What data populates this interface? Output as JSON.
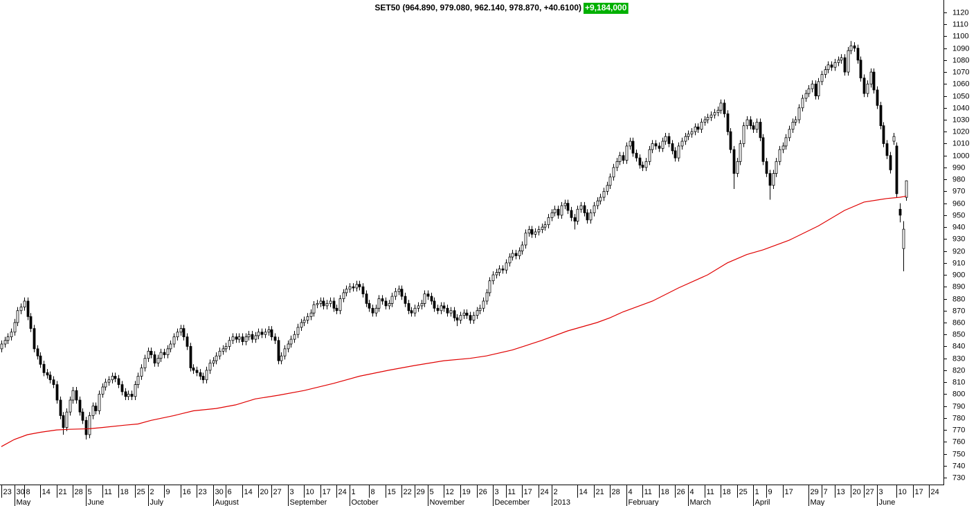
{
  "chart_data": {
    "type": "candlestick",
    "title": "SET50 (964.890, 979.080, 962.140, 978.870, +40.6100)",
    "volume_label": "+9,184,000",
    "up_color": "#ffffff",
    "down_color": "#000000",
    "open": [
      838,
      842,
      845,
      848,
      852,
      860,
      870,
      873,
      878,
      865,
      855,
      838,
      832,
      825,
      818,
      816,
      812,
      808,
      795,
      782,
      772,
      785,
      795,
      803,
      795,
      785,
      778,
      766,
      782,
      790,
      786,
      800,
      806,
      810,
      812,
      815,
      813,
      808,
      802,
      798,
      800,
      798,
      808,
      815,
      822,
      830,
      836,
      833,
      826,
      830,
      835,
      833,
      838,
      842,
      848,
      852,
      855,
      848,
      840,
      822,
      820,
      818,
      815,
      812,
      820,
      826,
      828,
      832,
      836,
      838,
      840,
      845,
      848,
      846,
      848,
      844,
      848,
      850,
      846,
      849,
      852,
      850,
      852,
      854,
      848,
      845,
      828,
      832,
      838,
      842,
      846,
      850,
      856,
      860,
      862,
      865,
      868,
      875,
      876,
      878,
      874,
      876,
      878,
      872,
      870,
      880,
      885,
      888,
      890,
      889,
      892,
      890,
      884,
      876,
      872,
      868,
      872,
      880,
      878,
      874,
      876,
      882,
      886,
      888,
      882,
      876,
      870,
      868,
      872,
      874,
      876,
      884,
      882,
      878,
      872,
      870,
      874,
      872,
      868,
      870,
      864,
      862,
      866,
      868,
      866,
      862,
      866,
      870,
      872,
      878,
      885,
      895,
      900,
      902,
      905,
      904,
      910,
      915,
      918,
      916,
      920,
      925,
      935,
      938,
      934,
      936,
      938,
      940,
      942,
      948,
      952,
      955,
      950,
      958,
      960,
      954,
      948,
      945,
      955,
      958,
      952,
      946,
      952,
      958,
      962,
      965,
      970,
      975,
      982,
      990,
      995,
      1000,
      996,
      1008,
      1012,
      1002,
      998,
      992,
      990,
      995,
      1005,
      1010,
      1008,
      1006,
      1012,
      1016,
      1010,
      1004,
      998,
      1008,
      1012,
      1016,
      1018,
      1020,
      1024,
      1022,
      1028,
      1030,
      1032,
      1034,
      1036,
      1038,
      1044,
      1035,
      1020,
      1005,
      985,
      995,
      1010,
      1025,
      1030,
      1025,
      1022,
      1028,
      1015,
      995,
      985,
      975,
      985,
      995,
      1005,
      1008,
      1015,
      1022,
      1028,
      1030,
      1040,
      1048,
      1052,
      1056,
      1060,
      1050,
      1062,
      1068,
      1072,
      1076,
      1074,
      1078,
      1080,
      1082,
      1070,
      1088,
      1092,
      1090,
      1080,
      1065,
      1052,
      1060,
      1070,
      1055,
      1042,
      1025,
      1010,
      1000,
      1012,
      1008,
      955,
      922,
      964.89
    ],
    "high": [
      845,
      848,
      851,
      855,
      863,
      873,
      876,
      881,
      881,
      868,
      858,
      841,
      835,
      828,
      821,
      819,
      815,
      811,
      798,
      785,
      788,
      798,
      806,
      806,
      798,
      788,
      781,
      785,
      793,
      793,
      803,
      809,
      813,
      815,
      818,
      818,
      816,
      811,
      805,
      803,
      803,
      811,
      818,
      825,
      833,
      839,
      839,
      836,
      833,
      838,
      838,
      841,
      845,
      851,
      855,
      858,
      858,
      851,
      843,
      825,
      823,
      821,
      818,
      823,
      829,
      831,
      835,
      839,
      841,
      843,
      848,
      851,
      851,
      851,
      851,
      851,
      853,
      853,
      852,
      855,
      855,
      855,
      857,
      857,
      851,
      848,
      835,
      841,
      845,
      849,
      853,
      859,
      863,
      865,
      868,
      871,
      878,
      879,
      881,
      881,
      879,
      881,
      881,
      875,
      883,
      888,
      891,
      893,
      893,
      895,
      895,
      893,
      887,
      879,
      875,
      875,
      883,
      883,
      881,
      879,
      885,
      889,
      891,
      891,
      885,
      879,
      873,
      875,
      877,
      879,
      887,
      887,
      885,
      881,
      875,
      877,
      877,
      875,
      873,
      873,
      867,
      869,
      871,
      871,
      869,
      869,
      873,
      875,
      881,
      888,
      898,
      903,
      905,
      908,
      908,
      913,
      918,
      921,
      921,
      923,
      928,
      938,
      941,
      941,
      939,
      941,
      943,
      945,
      951,
      955,
      958,
      958,
      961,
      963,
      963,
      957,
      951,
      958,
      961,
      961,
      955,
      955,
      961,
      965,
      968,
      973,
      978,
      985,
      993,
      998,
      1003,
      1003,
      1011,
      1015,
      1015,
      1005,
      1001,
      995,
      998,
      1008,
      1013,
      1013,
      1011,
      1015,
      1019,
      1019,
      1013,
      1007,
      1011,
      1015,
      1019,
      1021,
      1023,
      1027,
      1027,
      1031,
      1033,
      1035,
      1037,
      1039,
      1041,
      1047,
      1047,
      1038,
      1023,
      1008,
      998,
      1013,
      1028,
      1033,
      1033,
      1028,
      1031,
      1031,
      1018,
      998,
      988,
      988,
      998,
      1008,
      1011,
      1018,
      1025,
      1031,
      1033,
      1043,
      1051,
      1055,
      1059,
      1063,
      1063,
      1065,
      1071,
      1075,
      1079,
      1079,
      1081,
      1083,
      1085,
      1085,
      1091,
      1096,
      1095,
      1093,
      1083,
      1068,
      1063,
      1073,
      1073,
      1058,
      1045,
      1028,
      1013,
      1003,
      1019,
      1011,
      960,
      945,
      979.08
    ],
    "low": [
      835,
      839,
      842,
      845,
      849,
      857,
      867,
      870,
      862,
      852,
      835,
      829,
      822,
      815,
      813,
      809,
      805,
      792,
      779,
      766,
      769,
      782,
      792,
      792,
      782,
      775,
      762,
      763,
      779,
      783,
      783,
      797,
      803,
      807,
      809,
      810,
      805,
      799,
      795,
      795,
      795,
      795,
      805,
      812,
      819,
      827,
      830,
      823,
      823,
      827,
      830,
      830,
      835,
      839,
      845,
      849,
      845,
      837,
      819,
      817,
      815,
      812,
      809,
      809,
      817,
      823,
      825,
      829,
      833,
      835,
      837,
      842,
      843,
      843,
      841,
      841,
      845,
      843,
      843,
      846,
      847,
      847,
      849,
      845,
      842,
      825,
      825,
      829,
      835,
      839,
      843,
      847,
      853,
      857,
      859,
      862,
      865,
      872,
      873,
      871,
      871,
      873,
      869,
      867,
      867,
      877,
      882,
      885,
      886,
      886,
      887,
      881,
      873,
      869,
      865,
      865,
      869,
      875,
      871,
      871,
      873,
      879,
      883,
      879,
      873,
      867,
      865,
      865,
      869,
      871,
      873,
      879,
      875,
      869,
      867,
      867,
      869,
      865,
      865,
      861,
      857,
      859,
      863,
      863,
      859,
      859,
      863,
      867,
      869,
      875,
      882,
      892,
      897,
      899,
      901,
      901,
      907,
      912,
      913,
      913,
      917,
      922,
      932,
      931,
      931,
      933,
      935,
      937,
      939,
      945,
      949,
      947,
      947,
      955,
      951,
      945,
      938,
      942,
      952,
      949,
      943,
      943,
      949,
      955,
      959,
      962,
      967,
      972,
      979,
      987,
      992,
      993,
      993,
      1005,
      999,
      995,
      989,
      987,
      987,
      992,
      1002,
      1005,
      1003,
      1003,
      1009,
      1007,
      1001,
      995,
      995,
      1005,
      1009,
      1013,
      1015,
      1017,
      1019,
      1019,
      1025,
      1027,
      1029,
      1031,
      1033,
      1035,
      1032,
      1017,
      1002,
      972,
      982,
      992,
      1007,
      1022,
      1022,
      1019,
      1019,
      1012,
      992,
      982,
      963,
      972,
      982,
      992,
      1002,
      1005,
      1012,
      1019,
      1025,
      1027,
      1037,
      1045,
      1049,
      1053,
      1047,
      1047,
      1059,
      1065,
      1069,
      1071,
      1071,
      1075,
      1077,
      1067,
      1067,
      1085,
      1087,
      1077,
      1062,
      1049,
      1049,
      1057,
      1052,
      1039,
      1022,
      1007,
      997,
      985,
      1009,
      965,
      944,
      903,
      962.14
    ],
    "close": [
      842,
      845,
      848,
      852,
      860,
      870,
      873,
      878,
      865,
      855,
      838,
      832,
      825,
      818,
      816,
      812,
      808,
      795,
      782,
      772,
      785,
      795,
      803,
      795,
      785,
      778,
      766,
      782,
      790,
      786,
      800,
      806,
      810,
      812,
      815,
      813,
      808,
      802,
      798,
      800,
      798,
      808,
      815,
      822,
      830,
      836,
      833,
      826,
      830,
      835,
      833,
      838,
      842,
      848,
      852,
      855,
      848,
      840,
      822,
      820,
      818,
      815,
      812,
      820,
      826,
      828,
      832,
      836,
      838,
      840,
      845,
      848,
      846,
      848,
      844,
      848,
      850,
      846,
      849,
      852,
      850,
      852,
      854,
      848,
      845,
      828,
      832,
      838,
      842,
      846,
      850,
      856,
      860,
      862,
      865,
      868,
      875,
      876,
      878,
      874,
      876,
      878,
      872,
      870,
      880,
      885,
      888,
      890,
      889,
      892,
      890,
      884,
      876,
      872,
      868,
      872,
      880,
      878,
      874,
      876,
      882,
      886,
      888,
      882,
      876,
      870,
      868,
      872,
      874,
      876,
      884,
      882,
      878,
      872,
      870,
      874,
      872,
      868,
      870,
      864,
      862,
      866,
      868,
      866,
      862,
      866,
      870,
      872,
      878,
      885,
      895,
      900,
      902,
      905,
      904,
      910,
      915,
      918,
      916,
      920,
      925,
      935,
      938,
      934,
      936,
      938,
      940,
      942,
      948,
      952,
      955,
      950,
      958,
      960,
      954,
      948,
      945,
      955,
      958,
      952,
      946,
      952,
      958,
      962,
      965,
      970,
      975,
      982,
      990,
      995,
      1000,
      996,
      1008,
      1012,
      1002,
      998,
      992,
      990,
      995,
      1005,
      1010,
      1008,
      1006,
      1012,
      1016,
      1010,
      1004,
      998,
      1008,
      1012,
      1016,
      1018,
      1020,
      1024,
      1022,
      1028,
      1030,
      1032,
      1034,
      1036,
      1038,
      1044,
      1035,
      1020,
      1005,
      985,
      995,
      1010,
      1025,
      1030,
      1025,
      1022,
      1028,
      1015,
      995,
      985,
      975,
      985,
      995,
      1005,
      1008,
      1015,
      1022,
      1028,
      1030,
      1040,
      1048,
      1052,
      1056,
      1060,
      1050,
      1062,
      1068,
      1072,
      1076,
      1074,
      1078,
      1080,
      1082,
      1070,
      1088,
      1092,
      1090,
      1080,
      1065,
      1052,
      1060,
      1070,
      1055,
      1042,
      1025,
      1010,
      1000,
      988,
      1016,
      968,
      950,
      938.26,
      978.87
    ],
    "series": [
      {
        "color": "#e00000",
        "x": [
          0,
          4,
          8,
          12,
          17,
          21,
          27,
          31,
          38,
          42,
          46,
          53,
          59,
          66,
          72,
          78,
          85,
          93,
          102,
          110,
          119,
          127,
          136,
          144,
          149,
          157,
          166,
          174,
          183,
          187,
          191,
          200,
          208,
          217,
          223,
          229,
          234,
          242,
          251,
          259,
          265,
          272,
          276,
          278
        ],
        "values": [
          756,
          762,
          766,
          768,
          770,
          770.5,
          771,
          772,
          774,
          775,
          778,
          782,
          786,
          788,
          791,
          796,
          799,
          803,
          809,
          815,
          820,
          824,
          828,
          830,
          832,
          837,
          845,
          853,
          860,
          864,
          869,
          878,
          889,
          900,
          910,
          917,
          921,
          929,
          941,
          954,
          961,
          964,
          965,
          966
        ]
      }
    ],
    "xlim": [
      -0.4,
      289.2
    ],
    "ylim": [
      724.2,
      1130.4
    ],
    "yticks": [
      730,
      740,
      750,
      760,
      770,
      780,
      790,
      800,
      810,
      820,
      830,
      840,
      850,
      860,
      870,
      880,
      890,
      900,
      910,
      920,
      930,
      940,
      950,
      960,
      970,
      980,
      990,
      1000,
      1010,
      1020,
      1030,
      1040,
      1050,
      1060,
      1070,
      1080,
      1090,
      1100,
      1110,
      1120
    ],
    "xticks": [
      {
        "value": 0,
        "label": "23"
      },
      {
        "value": 4,
        "label": "30"
      },
      {
        "value": 7,
        "label": "8"
      },
      {
        "value": 12,
        "label": "14"
      },
      {
        "value": 17,
        "label": "21"
      },
      {
        "value": 22,
        "label": "28"
      },
      {
        "value": 26,
        "label": "5"
      },
      {
        "value": 31,
        "label": "11"
      },
      {
        "value": 36,
        "label": "18"
      },
      {
        "value": 41,
        "label": "25"
      },
      {
        "value": 45,
        "label": "2"
      },
      {
        "value": 50,
        "label": "9"
      },
      {
        "value": 55,
        "label": "16"
      },
      {
        "value": 60,
        "label": "23"
      },
      {
        "value": 65,
        "label": "30"
      },
      {
        "value": 69,
        "label": "6"
      },
      {
        "value": 74,
        "label": "14"
      },
      {
        "value": 79,
        "label": "20"
      },
      {
        "value": 83,
        "label": "27"
      },
      {
        "value": 88,
        "label": "3"
      },
      {
        "value": 93,
        "label": "10"
      },
      {
        "value": 98,
        "label": "17"
      },
      {
        "value": 103,
        "label": "24"
      },
      {
        "value": 107,
        "label": "1"
      },
      {
        "value": 113,
        "label": "8"
      },
      {
        "value": 118,
        "label": "15"
      },
      {
        "value": 123,
        "label": "22"
      },
      {
        "value": 127,
        "label": "29"
      },
      {
        "value": 131,
        "label": "5"
      },
      {
        "value": 136,
        "label": "12"
      },
      {
        "value": 141,
        "label": "19"
      },
      {
        "value": 146,
        "label": "26"
      },
      {
        "value": 151,
        "label": "3"
      },
      {
        "value": 155,
        "label": "11"
      },
      {
        "value": 160,
        "label": "17"
      },
      {
        "value": 165,
        "label": "24"
      },
      {
        "value": 169,
        "label": "2"
      },
      {
        "value": 177,
        "label": "14"
      },
      {
        "value": 182,
        "label": "21"
      },
      {
        "value": 187,
        "label": "28"
      },
      {
        "value": 192,
        "label": "4"
      },
      {
        "value": 197,
        "label": "11"
      },
      {
        "value": 202,
        "label": "18"
      },
      {
        "value": 207,
        "label": "26"
      },
      {
        "value": 211,
        "label": "4"
      },
      {
        "value": 216,
        "label": "11"
      },
      {
        "value": 221,
        "label": "18"
      },
      {
        "value": 226,
        "label": "25"
      },
      {
        "value": 231,
        "label": "1"
      },
      {
        "value": 235,
        "label": "9"
      },
      {
        "value": 240,
        "label": "17"
      },
      {
        "value": 248,
        "label": "29"
      },
      {
        "value": 252,
        "label": "7"
      },
      {
        "value": 256,
        "label": "13"
      },
      {
        "value": 261,
        "label": "20"
      },
      {
        "value": 265,
        "label": "27"
      },
      {
        "value": 269,
        "label": "3"
      },
      {
        "value": 275,
        "label": "10"
      },
      {
        "value": 280,
        "label": "17"
      },
      {
        "value": 285,
        "label": "24"
      }
    ],
    "xticks2": [
      {
        "value": 4,
        "label": "May"
      },
      {
        "value": 26,
        "label": "June"
      },
      {
        "value": 45,
        "label": "July"
      },
      {
        "value": 65,
        "label": "August"
      },
      {
        "value": 88,
        "label": "September"
      },
      {
        "value": 107,
        "label": "October"
      },
      {
        "value": 131,
        "label": "November"
      },
      {
        "value": 151,
        "label": "December"
      },
      {
        "value": 169,
        "label": "2013"
      },
      {
        "value": 192,
        "label": "February"
      },
      {
        "value": 211,
        "label": "March"
      },
      {
        "value": 231,
        "label": "April"
      },
      {
        "value": 248,
        "label": "May"
      },
      {
        "value": 269,
        "label": "June"
      }
    ]
  }
}
